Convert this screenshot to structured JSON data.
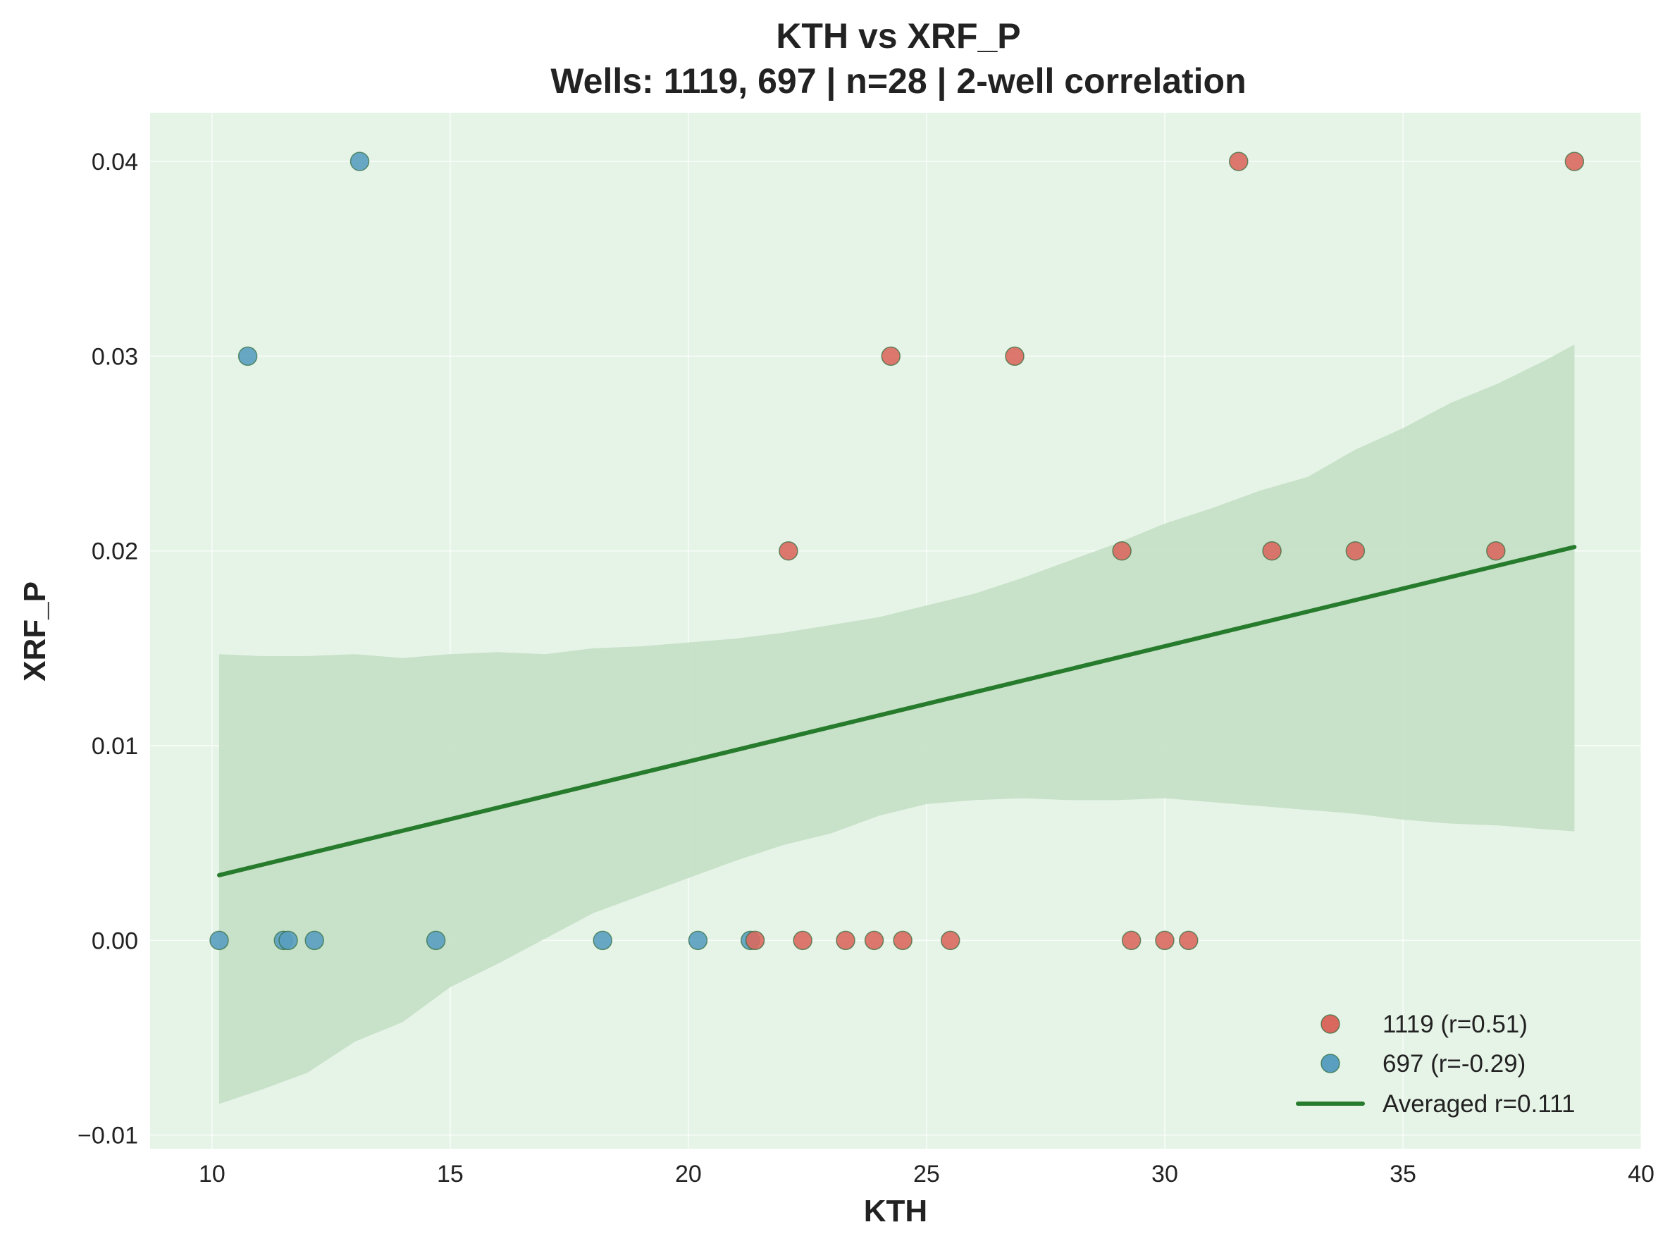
{
  "chart_data": {
    "type": "scatter",
    "title": "KTH vs XRF_P",
    "subtitle": "Wells: 1119, 697 | n=28 | 2-well correlation",
    "xlabel": "KTH",
    "ylabel": "XRF_P",
    "xlim": [
      8.7,
      40
    ],
    "ylim": [
      -0.0107,
      0.0425
    ],
    "xticks": [
      10,
      15,
      20,
      25,
      30,
      35,
      40
    ],
    "xtick_labels": [
      "10",
      "15",
      "20",
      "25",
      "30",
      "35",
      "40"
    ],
    "yticks": [
      -0.01,
      0.0,
      0.01,
      0.02,
      0.03,
      0.04
    ],
    "ytick_labels": [
      "−0.01",
      "0.00",
      "0.01",
      "0.02",
      "0.03",
      "0.04"
    ],
    "grid": true,
    "legend_position": "bottom-right",
    "colors": {
      "plot_background": "#e6f4e7",
      "band": "#c4dfc5",
      "line": "#267b2c"
    },
    "series": [
      {
        "name": "1119 (r=0.51)",
        "color": "#d9695f",
        "points": [
          {
            "x": 21.4,
            "y": 0.0
          },
          {
            "x": 22.1,
            "y": 0.02
          },
          {
            "x": 22.4,
            "y": 0.0
          },
          {
            "x": 23.3,
            "y": 0.0
          },
          {
            "x": 23.9,
            "y": 0.0
          },
          {
            "x": 24.25,
            "y": 0.03
          },
          {
            "x": 24.5,
            "y": 0.0
          },
          {
            "x": 25.5,
            "y": 0.0
          },
          {
            "x": 26.85,
            "y": 0.03
          },
          {
            "x": 29.1,
            "y": 0.02
          },
          {
            "x": 29.3,
            "y": 0.0
          },
          {
            "x": 30.0,
            "y": 0.0
          },
          {
            "x": 30.5,
            "y": 0.0
          },
          {
            "x": 31.55,
            "y": 0.04
          },
          {
            "x": 32.25,
            "y": 0.02
          },
          {
            "x": 34.0,
            "y": 0.02
          },
          {
            "x": 36.95,
            "y": 0.02
          },
          {
            "x": 38.6,
            "y": 0.04
          }
        ]
      },
      {
        "name": "697 (r=-0.29)",
        "color": "#5a9fc0",
        "points": [
          {
            "x": 10.15,
            "y": 0.0
          },
          {
            "x": 10.75,
            "y": 0.03
          },
          {
            "x": 11.5,
            "y": 0.0
          },
          {
            "x": 11.6,
            "y": 0.0
          },
          {
            "x": 12.15,
            "y": 0.0
          },
          {
            "x": 13.1,
            "y": 0.04
          },
          {
            "x": 14.7,
            "y": 0.0
          },
          {
            "x": 18.2,
            "y": 0.0
          },
          {
            "x": 20.2,
            "y": 0.0
          },
          {
            "x": 21.3,
            "y": 0.0
          }
        ]
      },
      {
        "name": "Averaged r=0.111",
        "type": "line",
        "color": "#267b2c",
        "points": [
          {
            "x": 10.15,
            "y": 0.00335
          },
          {
            "x": 38.6,
            "y": 0.0202
          }
        ]
      }
    ],
    "confidence_band": {
      "x": [
        10.15,
        11,
        12,
        13,
        14,
        15,
        16,
        17,
        18,
        19,
        20,
        21,
        22,
        23,
        24,
        25,
        26,
        27,
        28,
        29,
        30,
        31,
        32,
        33,
        34,
        35,
        36,
        37,
        38,
        38.6
      ],
      "upper": [
        0.0147,
        0.0146,
        0.0146,
        0.0147,
        0.0145,
        0.0147,
        0.0148,
        0.0147,
        0.015,
        0.0151,
        0.0153,
        0.0155,
        0.0158,
        0.0162,
        0.0166,
        0.0172,
        0.0178,
        0.0186,
        0.0195,
        0.0204,
        0.0214,
        0.0222,
        0.0231,
        0.0238,
        0.0252,
        0.0263,
        0.0276,
        0.0286,
        0.0298,
        0.0306
      ],
      "lower": [
        -0.0084,
        -0.0077,
        -0.0068,
        -0.0052,
        -0.0042,
        -0.0024,
        -0.0012,
        0.0001,
        0.0014,
        0.0023,
        0.0032,
        0.0041,
        0.0049,
        0.0055,
        0.0064,
        0.007,
        0.0072,
        0.0073,
        0.0072,
        0.0072,
        0.0073,
        0.0071,
        0.0069,
        0.0067,
        0.0065,
        0.0062,
        0.006,
        0.0059,
        0.0057,
        0.0056
      ]
    }
  }
}
